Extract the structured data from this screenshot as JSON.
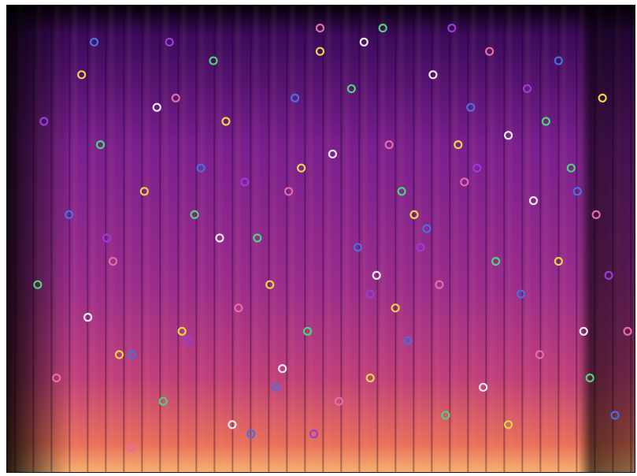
{
  "chart_data": {
    "type": "scatter",
    "xlim": [
      0,
      100
    ],
    "ylim": [
      0,
      100
    ],
    "series": [
      {
        "color": "#e8d44a",
        "x": [
          12,
          22,
          28,
          35,
          42,
          50,
          58,
          65,
          72,
          80,
          88,
          95,
          18,
          47,
          62
        ],
        "values": [
          85,
          60,
          30,
          75,
          40,
          90,
          20,
          55,
          70,
          10,
          45,
          80,
          25,
          65,
          35
        ]
      },
      {
        "color": "#4cd37a",
        "x": [
          5,
          15,
          25,
          33,
          40,
          48,
          55,
          63,
          70,
          78,
          86,
          93,
          30,
          60,
          90
        ],
        "values": [
          40,
          70,
          15,
          88,
          50,
          30,
          82,
          60,
          12,
          45,
          75,
          20,
          55,
          95,
          65
        ]
      },
      {
        "color": "#e86aa8",
        "x": [
          8,
          17,
          27,
          37,
          45,
          53,
          61,
          69,
          77,
          85,
          94,
          20,
          50,
          73,
          99
        ],
        "values": [
          20,
          45,
          80,
          35,
          60,
          15,
          70,
          40,
          90,
          25,
          55,
          5,
          95,
          62,
          30
        ]
      },
      {
        "color": "#4a6ee0",
        "x": [
          10,
          20,
          31,
          39,
          46,
          56,
          64,
          74,
          82,
          91,
          14,
          43,
          67,
          88,
          97
        ],
        "values": [
          55,
          25,
          65,
          8,
          80,
          48,
          28,
          78,
          38,
          60,
          92,
          18,
          52,
          88,
          12
        ]
      },
      {
        "color": "#f0e6f0",
        "x": [
          13,
          24,
          34,
          44,
          52,
          59,
          68,
          76,
          84,
          92,
          36,
          57,
          80
        ],
        "values": [
          33,
          78,
          50,
          22,
          68,
          42,
          85,
          18,
          58,
          30,
          10,
          92,
          72
        ]
      },
      {
        "color": "#9a3ad8",
        "x": [
          6,
          16,
          26,
          38,
          49,
          58,
          66,
          75,
          83,
          96,
          29,
          71
        ],
        "values": [
          75,
          50,
          92,
          62,
          8,
          38,
          48,
          65,
          82,
          42,
          28,
          95
        ]
      }
    ]
  }
}
